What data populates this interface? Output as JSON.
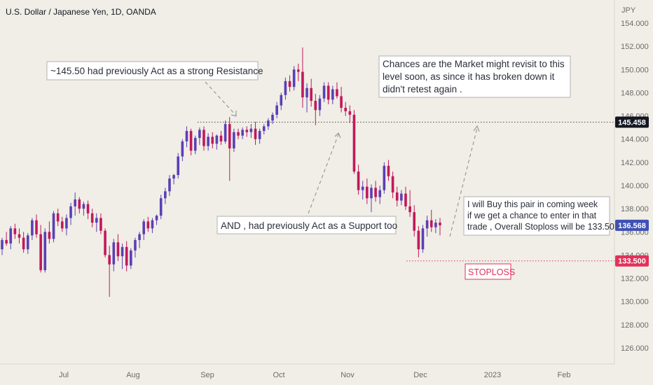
{
  "chart_data": {
    "type": "candlestick",
    "title": "U.S. Dollar / Japanese Yen, 1D, OANDA",
    "currency": "JPY",
    "ylim": [
      124.5,
      155.5
    ],
    "y_ticks": [
      126,
      128,
      130,
      132,
      134,
      136,
      138,
      140,
      142,
      144,
      146,
      148,
      150,
      152,
      154
    ],
    "y_tick_labels": [
      "126.000",
      "128.000",
      "130.000",
      "132.000",
      "134.000",
      "136.000",
      "138.000",
      "140.000",
      "142.000",
      "144.000",
      "146.000",
      "148.000",
      "150.000",
      "152.000",
      "154.000"
    ],
    "x_ticks": [
      "Jul",
      "Aug",
      "Sep",
      "Oct",
      "Nov",
      "Dec",
      "2023",
      "Feb"
    ],
    "colors": {
      "up": "#5b3fb5",
      "down": "#c2185b",
      "background": "#f0eee6",
      "resistance": "#4a4a4a",
      "stoploss": "#e0325a"
    },
    "price_labels": [
      {
        "value": 145.458,
        "text": "145.458",
        "color": "#131722"
      },
      {
        "value": 136.568,
        "text": "136.568",
        "color": "#3f51b5"
      },
      {
        "value": 133.5,
        "text": "133.500",
        "color": "#e0325a"
      }
    ],
    "candles": [
      [
        134.5,
        135.5,
        134.0,
        135.3
      ],
      [
        135.3,
        136.0,
        134.8,
        135.0
      ],
      [
        135.0,
        136.5,
        134.5,
        136.3
      ],
      [
        136.3,
        136.7,
        135.4,
        135.8
      ],
      [
        135.8,
        136.3,
        135.0,
        135.5
      ],
      [
        135.5,
        136.0,
        134.2,
        134.5
      ],
      [
        134.5,
        135.9,
        134.1,
        135.7
      ],
      [
        135.7,
        137.2,
        135.3,
        137.0
      ],
      [
        137.0,
        137.5,
        135.5,
        135.8
      ],
      [
        135.8,
        136.6,
        132.5,
        132.7
      ],
      [
        132.7,
        136.3,
        132.5,
        136.0
      ],
      [
        136.0,
        136.9,
        135.0,
        135.4
      ],
      [
        135.4,
        137.8,
        135.1,
        137.6
      ],
      [
        137.6,
        138.0,
        136.5,
        136.9
      ],
      [
        136.9,
        137.3,
        136.0,
        136.3
      ],
      [
        136.3,
        137.5,
        135.7,
        137.2
      ],
      [
        137.2,
        138.5,
        136.6,
        138.2
      ],
      [
        138.2,
        139.4,
        137.4,
        138.8
      ],
      [
        138.8,
        139.0,
        137.6,
        138.0
      ],
      [
        138.0,
        138.6,
        137.4,
        138.4
      ],
      [
        138.4,
        138.7,
        137.1,
        137.6
      ],
      [
        137.6,
        138.0,
        136.4,
        136.8
      ],
      [
        136.8,
        137.6,
        136.0,
        137.2
      ],
      [
        137.2,
        137.6,
        135.8,
        136.1
      ],
      [
        136.1,
        136.3,
        133.8,
        134.0
      ],
      [
        134.0,
        134.8,
        130.4,
        133.2
      ],
      [
        133.2,
        135.4,
        132.6,
        135.1
      ],
      [
        135.1,
        135.8,
        133.5,
        133.9
      ],
      [
        133.9,
        135.0,
        132.8,
        134.7
      ],
      [
        134.7,
        135.2,
        132.6,
        133.1
      ],
      [
        133.1,
        134.6,
        132.8,
        134.4
      ],
      [
        134.4,
        135.5,
        133.8,
        135.3
      ],
      [
        135.3,
        136.0,
        134.6,
        135.8
      ],
      [
        135.8,
        137.1,
        135.3,
        136.9
      ],
      [
        136.9,
        137.3,
        136.0,
        136.3
      ],
      [
        136.3,
        137.2,
        135.9,
        137.0
      ],
      [
        137.0,
        137.5,
        136.6,
        137.4
      ],
      [
        137.4,
        139.2,
        137.1,
        138.9
      ],
      [
        138.9,
        139.8,
        138.4,
        139.5
      ],
      [
        139.5,
        140.9,
        139.1,
        140.6
      ],
      [
        140.6,
        141.0,
        140.1,
        140.9
      ],
      [
        140.9,
        142.8,
        140.6,
        142.5
      ],
      [
        142.5,
        144.0,
        142.1,
        143.8
      ],
      [
        143.8,
        145.1,
        143.3,
        144.7
      ],
      [
        144.7,
        144.9,
        142.6,
        143.0
      ],
      [
        143.0,
        144.3,
        142.7,
        144.1
      ],
      [
        144.1,
        145.0,
        143.5,
        144.8
      ],
      [
        144.8,
        145.1,
        143.0,
        143.4
      ],
      [
        143.4,
        144.5,
        143.0,
        144.2
      ],
      [
        144.2,
        144.6,
        143.2,
        143.6
      ],
      [
        143.6,
        144.4,
        143.1,
        144.3
      ],
      [
        144.3,
        144.7,
        143.5,
        143.8
      ],
      [
        143.8,
        145.6,
        143.6,
        145.3
      ],
      [
        145.3,
        145.9,
        140.4,
        143.2
      ],
      [
        143.2,
        144.9,
        142.9,
        144.6
      ],
      [
        144.6,
        144.9,
        144.0,
        144.3
      ],
      [
        144.3,
        145.0,
        144.0,
        144.8
      ],
      [
        144.8,
        145.1,
        144.2,
        144.6
      ],
      [
        144.6,
        145.3,
        144.1,
        144.9
      ],
      [
        144.9,
        145.5,
        143.5,
        144.0
      ],
      [
        144.0,
        144.9,
        143.6,
        144.7
      ],
      [
        144.7,
        145.3,
        144.4,
        145.1
      ],
      [
        145.1,
        145.8,
        144.8,
        145.6
      ],
      [
        145.6,
        146.3,
        145.3,
        146.1
      ],
      [
        146.1,
        147.2,
        145.8,
        146.9
      ],
      [
        146.9,
        148.0,
        146.5,
        147.8
      ],
      [
        147.8,
        149.3,
        147.4,
        149.0
      ],
      [
        149.0,
        149.5,
        148.1,
        148.5
      ],
      [
        148.5,
        150.3,
        148.2,
        150.0
      ],
      [
        150.0,
        150.5,
        149.0,
        149.8
      ],
      [
        149.8,
        151.9,
        146.7,
        147.6
      ],
      [
        147.6,
        148.8,
        146.3,
        148.4
      ],
      [
        148.4,
        149.2,
        146.8,
        147.3
      ],
      [
        147.3,
        147.9,
        145.2,
        146.5
      ],
      [
        146.5,
        147.8,
        146.0,
        147.5
      ],
      [
        147.5,
        148.9,
        147.2,
        148.6
      ],
      [
        148.6,
        148.9,
        147.0,
        147.4
      ],
      [
        147.4,
        148.6,
        147.0,
        148.3
      ],
      [
        148.3,
        148.9,
        147.5,
        147.7
      ],
      [
        147.7,
        148.5,
        146.3,
        146.7
      ],
      [
        146.7,
        147.2,
        146.0,
        146.4
      ],
      [
        146.4,
        146.9,
        145.4,
        146.1
      ],
      [
        146.1,
        146.5,
        141.0,
        141.2
      ],
      [
        141.2,
        141.8,
        139.2,
        139.6
      ],
      [
        139.6,
        140.4,
        138.8,
        139.9
      ],
      [
        139.9,
        140.6,
        138.4,
        138.9
      ],
      [
        138.9,
        140.1,
        137.7,
        139.8
      ],
      [
        139.8,
        140.4,
        138.6,
        139.0
      ],
      [
        139.0,
        140.0,
        138.4,
        139.6
      ],
      [
        139.6,
        142.0,
        139.3,
        141.7
      ],
      [
        141.7,
        142.2,
        140.4,
        140.8
      ],
      [
        140.8,
        141.2,
        138.9,
        139.4
      ],
      [
        139.4,
        139.9,
        138.2,
        138.7
      ],
      [
        138.7,
        139.6,
        138.3,
        139.3
      ],
      [
        139.3,
        139.9,
        137.9,
        138.2
      ],
      [
        138.2,
        139.6,
        137.3,
        137.7
      ],
      [
        137.7,
        138.3,
        135.6,
        136.1
      ],
      [
        136.1,
        136.5,
        133.8,
        134.5
      ],
      [
        134.5,
        136.6,
        134.2,
        136.3
      ],
      [
        136.3,
        137.4,
        135.6,
        137.0
      ],
      [
        137.0,
        137.9,
        136.0,
        136.4
      ],
      [
        136.4,
        137.1,
        135.9,
        136.8
      ],
      [
        136.8,
        137.2,
        135.7,
        136.568
      ]
    ]
  },
  "annotations": {
    "resistance_label": "~145.50 had previously Act as a strong Resistance",
    "support_label": "AND , had previously Act as a Support too",
    "revisit_lines": [
      "Chances are the Market might revisit to this",
      "level soon, as since it has broken down it",
      "didn't retest again ."
    ],
    "buy_lines": [
      "I will Buy this pair in coming week",
      "if we get a chance to enter in that",
      "trade , Overall Stoploss will be 133.50"
    ],
    "stoploss_label": "STOPLOSS"
  }
}
